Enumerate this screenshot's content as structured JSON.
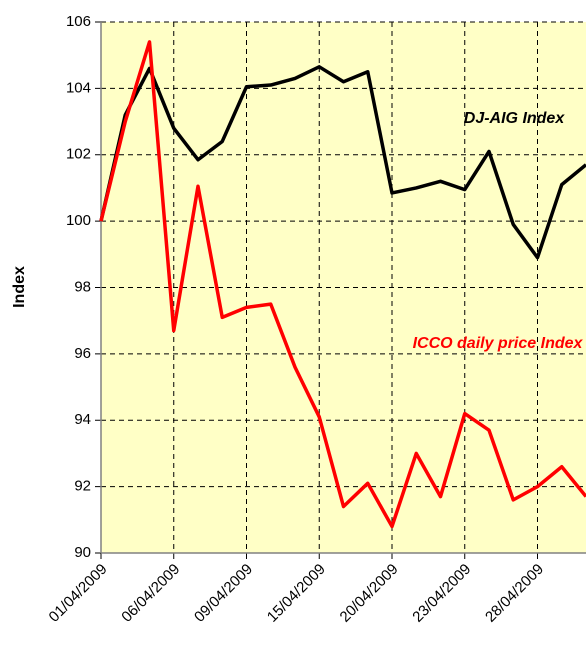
{
  "chart_data": {
    "type": "line",
    "y_label": "Index",
    "categories": [
      "01/04/2009",
      null,
      null,
      "06/04/2009",
      null,
      null,
      "09/04/2009",
      null,
      null,
      "15/04/2009",
      null,
      null,
      "20/04/2009",
      null,
      null,
      "23/04/2009",
      null,
      null,
      "28/04/2009",
      null,
      null
    ],
    "series": [
      {
        "name": "DJ-AIG Index",
        "color": "#000000",
        "values": [
          100.0,
          103.2,
          104.6,
          102.8,
          101.85,
          102.4,
          104.05,
          104.1,
          104.3,
          104.65,
          104.2,
          104.5,
          100.85,
          101.0,
          101.2,
          100.95,
          102.1,
          99.9,
          98.9,
          101.1,
          101.7
        ]
      },
      {
        "name": "ICCO daily price Index",
        "color": "#ff0000",
        "values": [
          100.0,
          103.0,
          105.4,
          96.7,
          101.05,
          97.1,
          97.4,
          97.5,
          95.6,
          94.1,
          91.4,
          92.1,
          90.8,
          93.0,
          91.7,
          94.2,
          93.7,
          91.6,
          92.0,
          92.6,
          91.7
        ]
      }
    ],
    "ylim": [
      90,
      106
    ],
    "yticks": [
      90,
      92,
      94,
      96,
      98,
      100,
      102,
      104,
      106
    ],
    "grid": true,
    "background": "#ffffc6"
  }
}
